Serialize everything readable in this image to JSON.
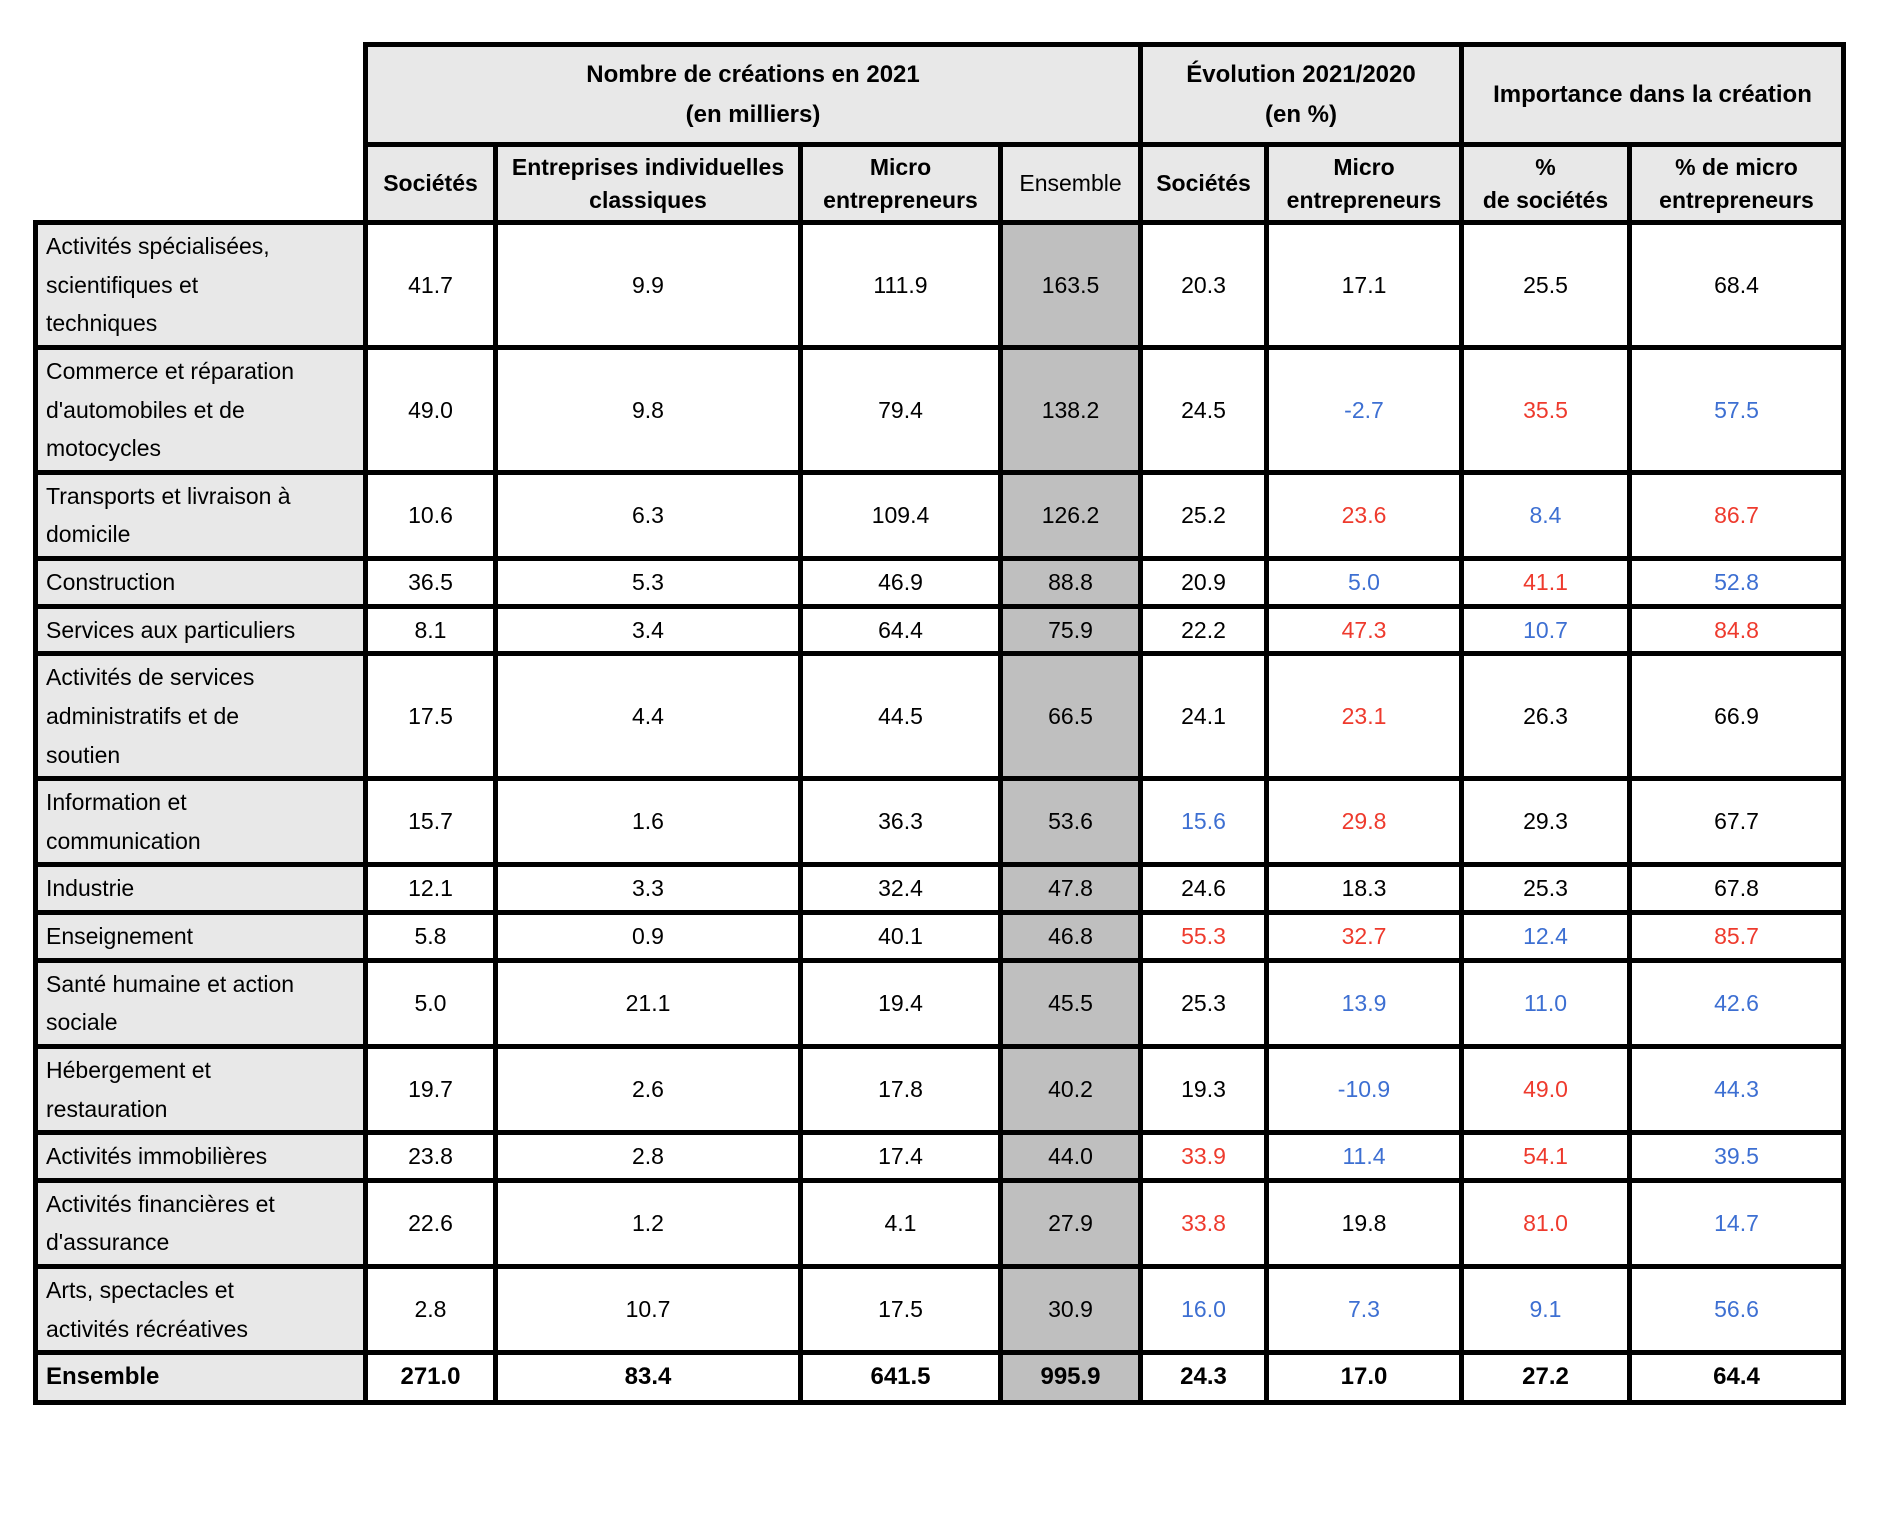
{
  "table": {
    "column_groups": [
      {
        "label": "Nombre de créations en 2021\n(en milliers)",
        "span": 4
      },
      {
        "label": "Évolution 2021/2020\n(en %)",
        "span": 2
      },
      {
        "label": "Importance dans la création",
        "span": 2
      }
    ],
    "sub_headers": [
      "Sociétés",
      "Entreprises individuelles\nclassiques",
      "Micro\nentrepreneurs",
      "Ensemble",
      "Sociétés",
      "Micro\nentrepreneurs",
      "%\nde sociétés",
      "% de micro\nentrepreneurs"
    ],
    "column_keys": [
      "societes",
      "entreprises-individuelles-classiques",
      "micro-entrepreneurs",
      "ensemble",
      "evolution-societes",
      "evolution-micro-entrepreneurs",
      "pct-societes",
      "pct-micro-entrepreneurs"
    ],
    "value_colors": {
      "k": "#000000",
      "r": "#ee3a2d",
      "b": "#3d6fd2"
    },
    "background_colors": {
      "header": "#e8e8e8",
      "row_label": "#e8e8e8",
      "ensemble_column": "#bfbfbf",
      "data_cell": "#ffffff"
    },
    "rows": [
      {
        "label": "Activités spécialisées,\nscientifiques et\ntechniques",
        "bold": false,
        "values": [
          {
            "v": "41.7",
            "c": "k"
          },
          {
            "v": "9.9",
            "c": "k"
          },
          {
            "v": "111.9",
            "c": "k"
          },
          {
            "v": "163.5",
            "c": "k"
          },
          {
            "v": "20.3",
            "c": "k"
          },
          {
            "v": "17.1",
            "c": "k"
          },
          {
            "v": "25.5",
            "c": "k"
          },
          {
            "v": "68.4",
            "c": "k"
          }
        ]
      },
      {
        "label": "Commerce et réparation\nd'automobiles et de\nmotocycles",
        "bold": false,
        "values": [
          {
            "v": "49.0",
            "c": "k"
          },
          {
            "v": "9.8",
            "c": "k"
          },
          {
            "v": "79.4",
            "c": "k"
          },
          {
            "v": "138.2",
            "c": "k"
          },
          {
            "v": "24.5",
            "c": "k"
          },
          {
            "v": "-2.7",
            "c": "b"
          },
          {
            "v": "35.5",
            "c": "r"
          },
          {
            "v": "57.5",
            "c": "b"
          }
        ]
      },
      {
        "label": "Transports et livraison à\ndomicile",
        "bold": false,
        "values": [
          {
            "v": "10.6",
            "c": "k"
          },
          {
            "v": "6.3",
            "c": "k"
          },
          {
            "v": "109.4",
            "c": "k"
          },
          {
            "v": "126.2",
            "c": "k"
          },
          {
            "v": "25.2",
            "c": "k"
          },
          {
            "v": "23.6",
            "c": "r"
          },
          {
            "v": "8.4",
            "c": "b"
          },
          {
            "v": "86.7",
            "c": "r"
          }
        ]
      },
      {
        "label": "Construction",
        "bold": false,
        "values": [
          {
            "v": "36.5",
            "c": "k"
          },
          {
            "v": "5.3",
            "c": "k"
          },
          {
            "v": "46.9",
            "c": "k"
          },
          {
            "v": "88.8",
            "c": "k"
          },
          {
            "v": "20.9",
            "c": "k"
          },
          {
            "v": "5.0",
            "c": "b"
          },
          {
            "v": "41.1",
            "c": "r"
          },
          {
            "v": "52.8",
            "c": "b"
          }
        ]
      },
      {
        "label": "Services aux particuliers",
        "bold": false,
        "values": [
          {
            "v": "8.1",
            "c": "k"
          },
          {
            "v": "3.4",
            "c": "k"
          },
          {
            "v": "64.4",
            "c": "k"
          },
          {
            "v": "75.9",
            "c": "k"
          },
          {
            "v": "22.2",
            "c": "k"
          },
          {
            "v": "47.3",
            "c": "r"
          },
          {
            "v": "10.7",
            "c": "b"
          },
          {
            "v": "84.8",
            "c": "r"
          }
        ]
      },
      {
        "label": "Activités de services\nadministratifs et de\nsoutien",
        "bold": false,
        "values": [
          {
            "v": "17.5",
            "c": "k"
          },
          {
            "v": "4.4",
            "c": "k"
          },
          {
            "v": "44.5",
            "c": "k"
          },
          {
            "v": "66.5",
            "c": "k"
          },
          {
            "v": "24.1",
            "c": "k"
          },
          {
            "v": "23.1",
            "c": "r"
          },
          {
            "v": "26.3",
            "c": "k"
          },
          {
            "v": "66.9",
            "c": "k"
          }
        ]
      },
      {
        "label": "Information et\ncommunication",
        "bold": false,
        "values": [
          {
            "v": "15.7",
            "c": "k"
          },
          {
            "v": "1.6",
            "c": "k"
          },
          {
            "v": "36.3",
            "c": "k"
          },
          {
            "v": "53.6",
            "c": "k"
          },
          {
            "v": "15.6",
            "c": "b"
          },
          {
            "v": "29.8",
            "c": "r"
          },
          {
            "v": "29.3",
            "c": "k"
          },
          {
            "v": "67.7",
            "c": "k"
          }
        ]
      },
      {
        "label": "Industrie",
        "bold": false,
        "values": [
          {
            "v": "12.1",
            "c": "k"
          },
          {
            "v": "3.3",
            "c": "k"
          },
          {
            "v": "32.4",
            "c": "k"
          },
          {
            "v": "47.8",
            "c": "k"
          },
          {
            "v": "24.6",
            "c": "k"
          },
          {
            "v": "18.3",
            "c": "k"
          },
          {
            "v": "25.3",
            "c": "k"
          },
          {
            "v": "67.8",
            "c": "k"
          }
        ]
      },
      {
        "label": "Enseignement",
        "bold": false,
        "values": [
          {
            "v": "5.8",
            "c": "k"
          },
          {
            "v": "0.9",
            "c": "k"
          },
          {
            "v": "40.1",
            "c": "k"
          },
          {
            "v": "46.8",
            "c": "k"
          },
          {
            "v": "55.3",
            "c": "r"
          },
          {
            "v": "32.7",
            "c": "r"
          },
          {
            "v": "12.4",
            "c": "b"
          },
          {
            "v": "85.7",
            "c": "r"
          }
        ]
      },
      {
        "label": "Santé humaine et action\nsociale",
        "bold": false,
        "values": [
          {
            "v": "5.0",
            "c": "k"
          },
          {
            "v": "21.1",
            "c": "k"
          },
          {
            "v": "19.4",
            "c": "k"
          },
          {
            "v": "45.5",
            "c": "k"
          },
          {
            "v": "25.3",
            "c": "k"
          },
          {
            "v": "13.9",
            "c": "b"
          },
          {
            "v": "11.0",
            "c": "b"
          },
          {
            "v": "42.6",
            "c": "b"
          }
        ]
      },
      {
        "label": "Hébergement et\nrestauration",
        "bold": false,
        "values": [
          {
            "v": "19.7",
            "c": "k"
          },
          {
            "v": "2.6",
            "c": "k"
          },
          {
            "v": "17.8",
            "c": "k"
          },
          {
            "v": "40.2",
            "c": "k"
          },
          {
            "v": "19.3",
            "c": "k"
          },
          {
            "v": "-10.9",
            "c": "b"
          },
          {
            "v": "49.0",
            "c": "r"
          },
          {
            "v": "44.3",
            "c": "b"
          }
        ]
      },
      {
        "label": "Activités immobilières",
        "bold": false,
        "values": [
          {
            "v": "23.8",
            "c": "k"
          },
          {
            "v": "2.8",
            "c": "k"
          },
          {
            "v": "17.4",
            "c": "k"
          },
          {
            "v": "44.0",
            "c": "k"
          },
          {
            "v": "33.9",
            "c": "r"
          },
          {
            "v": "11.4",
            "c": "b"
          },
          {
            "v": "54.1",
            "c": "r"
          },
          {
            "v": "39.5",
            "c": "b"
          }
        ]
      },
      {
        "label": "Activités financières et\nd'assurance",
        "bold": false,
        "values": [
          {
            "v": "22.6",
            "c": "k"
          },
          {
            "v": "1.2",
            "c": "k"
          },
          {
            "v": "4.1",
            "c": "k"
          },
          {
            "v": "27.9",
            "c": "k"
          },
          {
            "v": "33.8",
            "c": "r"
          },
          {
            "v": "19.8",
            "c": "k"
          },
          {
            "v": "81.0",
            "c": "r"
          },
          {
            "v": "14.7",
            "c": "b"
          }
        ]
      },
      {
        "label": "Arts, spectacles et\nactivités récréatives",
        "bold": false,
        "values": [
          {
            "v": "2.8",
            "c": "k"
          },
          {
            "v": "10.7",
            "c": "k"
          },
          {
            "v": "17.5",
            "c": "k"
          },
          {
            "v": "30.9",
            "c": "k"
          },
          {
            "v": "16.0",
            "c": "b"
          },
          {
            "v": "7.3",
            "c": "b"
          },
          {
            "v": "9.1",
            "c": "b"
          },
          {
            "v": "56.6",
            "c": "b"
          }
        ]
      },
      {
        "label": "Ensemble",
        "bold": true,
        "values": [
          {
            "v": "271.0",
            "c": "k"
          },
          {
            "v": "83.4",
            "c": "k"
          },
          {
            "v": "641.5",
            "c": "k"
          },
          {
            "v": "995.9",
            "c": "k"
          },
          {
            "v": "24.3",
            "c": "k"
          },
          {
            "v": "17.0",
            "c": "k"
          },
          {
            "v": "27.2",
            "c": "k"
          },
          {
            "v": "64.4",
            "c": "k"
          }
        ]
      }
    ]
  }
}
